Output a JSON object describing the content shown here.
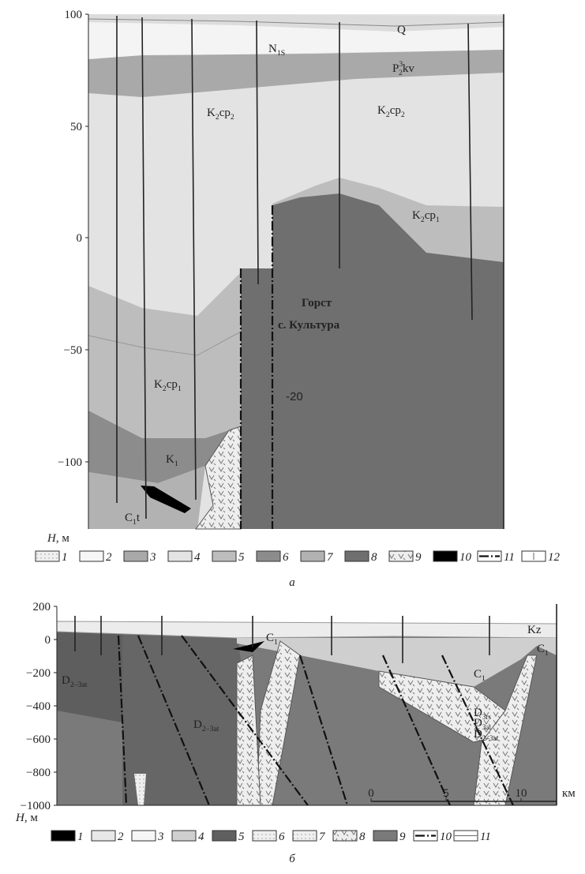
{
  "panel_a": {
    "y_ticks": [
      "100",
      "50",
      "0",
      "−50",
      "−100"
    ],
    "axis_label": [
      "H",
      ", м"
    ],
    "labels": [
      [
        {
          "t": "Q"
        }
      ],
      [
        {
          "t": "N"
        },
        {
          "t": "1S",
          "sub": true
        }
      ],
      [
        {
          "t": "P"
        },
        {
          "t": "3",
          "sup": true
        },
        {
          "t": "2",
          "sub": true
        },
        {
          "t": "kv"
        }
      ],
      [
        {
          "t": "K"
        },
        {
          "t": "2",
          "sub": true
        },
        {
          "t": "cp"
        },
        {
          "t": "2",
          "sub": true
        }
      ],
      [
        {
          "t": "K"
        },
        {
          "t": "2",
          "sub": true
        },
        {
          "t": "cp"
        },
        {
          "t": "2",
          "sub": true
        }
      ],
      [
        {
          "t": "K"
        },
        {
          "t": "2",
          "sub": true
        },
        {
          "t": "cp"
        },
        {
          "t": "1",
          "sub": true
        }
      ],
      [
        {
          "t": "K"
        },
        {
          "t": "2",
          "sub": true
        },
        {
          "t": "cp"
        },
        {
          "t": "1",
          "sub": true
        }
      ],
      [
        {
          "t": "K"
        },
        {
          "t": "1",
          "sub": true
        }
      ],
      [
        {
          "t": "C"
        },
        {
          "t": "1",
          "sub": true
        },
        {
          "t": "t"
        }
      ]
    ],
    "horst_title": [
      "Горст",
      "с. Культура"
    ],
    "depth_note": "-20",
    "legend": [
      "1",
      "2",
      "3",
      "4",
      "5",
      "6",
      "7",
      "8",
      "9",
      "10",
      "11",
      "12"
    ],
    "caption": "а"
  },
  "panel_b": {
    "y_ticks": [
      "200",
      "0",
      "−200",
      "−400",
      "−600",
      "−800",
      "−1000"
    ],
    "axis_label": [
      "H",
      ", м"
    ],
    "labels": [
      [
        {
          "t": "D"
        },
        {
          "t": "2–3at",
          "sub": true
        }
      ],
      [
        {
          "t": "D"
        },
        {
          "t": "2–3at",
          "sub": true
        }
      ],
      [
        {
          "t": "C"
        },
        {
          "t": "1",
          "sub": true
        }
      ],
      [
        {
          "t": "Kz"
        }
      ],
      [
        {
          "t": "C"
        },
        {
          "t": "1",
          "sub": true
        }
      ],
      [
        {
          "t": "C"
        },
        {
          "t": "1",
          "sub": true
        }
      ],
      [
        {
          "t": "D"
        },
        {
          "t": "3rs",
          "sub": true
        }
      ],
      [
        {
          "t": "D"
        },
        {
          "t": "3at",
          "sub": true
        }
      ],
      [
        {
          "t": "D"
        },
        {
          "t": "2–3at",
          "sub": true
        }
      ]
    ],
    "scale_ticks": [
      "0",
      "5",
      "10"
    ],
    "scale_unit": "км",
    "legend": [
      "1",
      "2",
      "3",
      "4",
      "5",
      "6",
      "7",
      "8",
      "9",
      "10",
      "11"
    ],
    "caption": "б"
  }
}
